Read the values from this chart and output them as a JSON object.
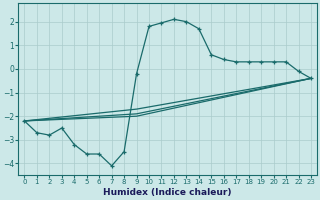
{
  "title": "",
  "xlabel": "Humidex (Indice chaleur)",
  "ylabel": "",
  "bg_color": "#cce8e8",
  "grid_color": "#aacccc",
  "line_color": "#1a6b6b",
  "xlim": [
    -0.5,
    23.5
  ],
  "ylim": [
    -4.5,
    2.8
  ],
  "xticks": [
    0,
    1,
    2,
    3,
    4,
    5,
    6,
    7,
    8,
    9,
    10,
    11,
    12,
    13,
    14,
    15,
    16,
    17,
    18,
    19,
    20,
    21,
    22,
    23
  ],
  "yticks": [
    -4,
    -3,
    -2,
    -1,
    0,
    1,
    2
  ],
  "line1_x": [
    0,
    1,
    2,
    3,
    4,
    5,
    6,
    7,
    8,
    9,
    10,
    11,
    12,
    13,
    14,
    15,
    16,
    17,
    18,
    19,
    20,
    21,
    22,
    23
  ],
  "line1_y": [
    -2.2,
    -2.7,
    -2.8,
    -2.5,
    -3.2,
    -3.6,
    -3.6,
    -4.1,
    -3.5,
    -0.2,
    1.8,
    1.95,
    2.1,
    2.0,
    1.7,
    0.6,
    0.4,
    0.3,
    0.3,
    0.3,
    0.3,
    0.3,
    -0.1,
    -0.4
  ],
  "line2_x": [
    0,
    9,
    23
  ],
  "line2_y": [
    -2.2,
    -2.0,
    -0.4
  ],
  "line3_x": [
    0,
    9,
    23
  ],
  "line3_y": [
    -2.2,
    -1.9,
    -0.4
  ],
  "line4_x": [
    0,
    9,
    23
  ],
  "line4_y": [
    -2.2,
    -1.7,
    -0.4
  ]
}
